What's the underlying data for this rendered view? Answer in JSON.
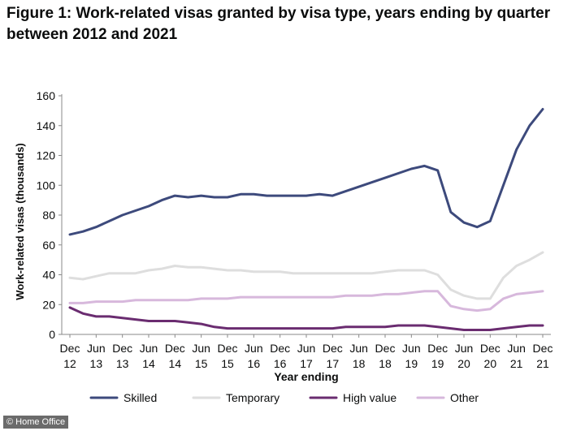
{
  "title": "Figure 1: Work-related visas granted by visa type, years ending by quarter between 2012 and 2021",
  "credit": "© Home Office",
  "chart_data": {
    "type": "line",
    "title": "Figure 1: Work-related visas granted by visa type, years ending by quarter between 2012 and 2021",
    "xlabel": "Year ending",
    "ylabel": "Work-related visas (thousands)",
    "ylim": [
      0,
      160
    ],
    "yticks": [
      0,
      20,
      40,
      60,
      80,
      100,
      120,
      140,
      160
    ],
    "x": [
      "Dec 12",
      "Mar 13",
      "Jun 13",
      "Sep 13",
      "Dec 13",
      "Mar 14",
      "Jun 14",
      "Sep 14",
      "Dec 14",
      "Mar 15",
      "Jun 15",
      "Sep 15",
      "Dec 15",
      "Mar 16",
      "Jun 16",
      "Sep 16",
      "Dec 16",
      "Mar 17",
      "Jun 17",
      "Sep 17",
      "Dec 17",
      "Mar 18",
      "Jun 18",
      "Sep 18",
      "Dec 18",
      "Mar 19",
      "Jun 19",
      "Sep 19",
      "Dec 19",
      "Mar 20",
      "Jun 20",
      "Sep 20",
      "Dec 20",
      "Mar 21",
      "Jun 21",
      "Sep 21",
      "Dec 21"
    ],
    "xtick_labels": [
      {
        "top": "Dec",
        "bottom": "12"
      },
      {
        "top": "Jun",
        "bottom": "13"
      },
      {
        "top": "Dec",
        "bottom": "13"
      },
      {
        "top": "Jun",
        "bottom": "14"
      },
      {
        "top": "Dec",
        "bottom": "14"
      },
      {
        "top": "Jun",
        "bottom": "15"
      },
      {
        "top": "Dec",
        "bottom": "15"
      },
      {
        "top": "Jun",
        "bottom": "16"
      },
      {
        "top": "Dec",
        "bottom": "16"
      },
      {
        "top": "Jun",
        "bottom": "17"
      },
      {
        "top": "Dec",
        "bottom": "17"
      },
      {
        "top": "Jun",
        "bottom": "18"
      },
      {
        "top": "Dec",
        "bottom": "18"
      },
      {
        "top": "Jun",
        "bottom": "19"
      },
      {
        "top": "Dec",
        "bottom": "19"
      },
      {
        "top": "Jun",
        "bottom": "20"
      },
      {
        "top": "Dec",
        "bottom": "20"
      },
      {
        "top": "Jun",
        "bottom": "21"
      },
      {
        "top": "Dec",
        "bottom": "21"
      }
    ],
    "series": [
      {
        "name": "Skilled",
        "color": "#3d4a7c",
        "values": [
          67,
          69,
          72,
          76,
          80,
          83,
          86,
          90,
          93,
          92,
          93,
          92,
          92,
          94,
          94,
          93,
          93,
          93,
          93,
          94,
          93,
          96,
          99,
          102,
          105,
          108,
          111,
          113,
          110,
          82,
          75,
          72,
          76,
          100,
          124,
          140,
          151
        ]
      },
      {
        "name": "Temporary",
        "color": "#dedede",
        "values": [
          38,
          37,
          39,
          41,
          41,
          41,
          43,
          44,
          46,
          45,
          45,
          44,
          43,
          43,
          42,
          42,
          42,
          41,
          41,
          41,
          41,
          41,
          41,
          41,
          42,
          43,
          43,
          43,
          40,
          30,
          26,
          24,
          24,
          38,
          46,
          50,
          55
        ]
      },
      {
        "name": "High value",
        "color": "#6a2c70",
        "values": [
          18,
          14,
          12,
          12,
          11,
          10,
          9,
          9,
          9,
          8,
          7,
          5,
          4,
          4,
          4,
          4,
          4,
          4,
          4,
          4,
          4,
          5,
          5,
          5,
          5,
          6,
          6,
          6,
          5,
          4,
          3,
          3,
          3,
          4,
          5,
          6,
          6
        ]
      },
      {
        "name": "Other",
        "color": "#d7b8dc",
        "values": [
          21,
          21,
          22,
          22,
          22,
          23,
          23,
          23,
          23,
          23,
          24,
          24,
          24,
          25,
          25,
          25,
          25,
          25,
          25,
          25,
          25,
          26,
          26,
          26,
          27,
          27,
          28,
          29,
          29,
          19,
          17,
          16,
          17,
          24,
          27,
          28,
          29
        ]
      }
    ],
    "grid": false,
    "legend_position": "bottom"
  }
}
